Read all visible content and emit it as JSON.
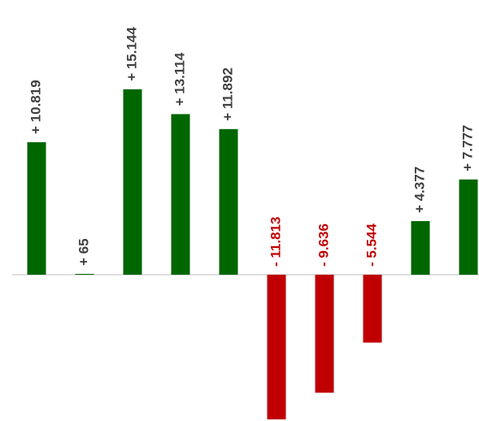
{
  "chart_data": {
    "type": "bar",
    "values": [
      10819,
      65,
      15144,
      13114,
      11892,
      -11813,
      -9636,
      -5544,
      4377,
      7777
    ],
    "value_labels": [
      "+ 10.819",
      "+ 65",
      "+ 15.144",
      "+ 13.114",
      "+ 11.892",
      "- 11.813",
      "- 9.636",
      "- 5.544",
      "+ 4.377",
      "+ 7.777"
    ],
    "colors": [
      "#006600",
      "#006600",
      "#006600",
      "#006600",
      "#006600",
      "#c00000",
      "#c00000",
      "#c00000",
      "#006600",
      "#006600"
    ]
  }
}
